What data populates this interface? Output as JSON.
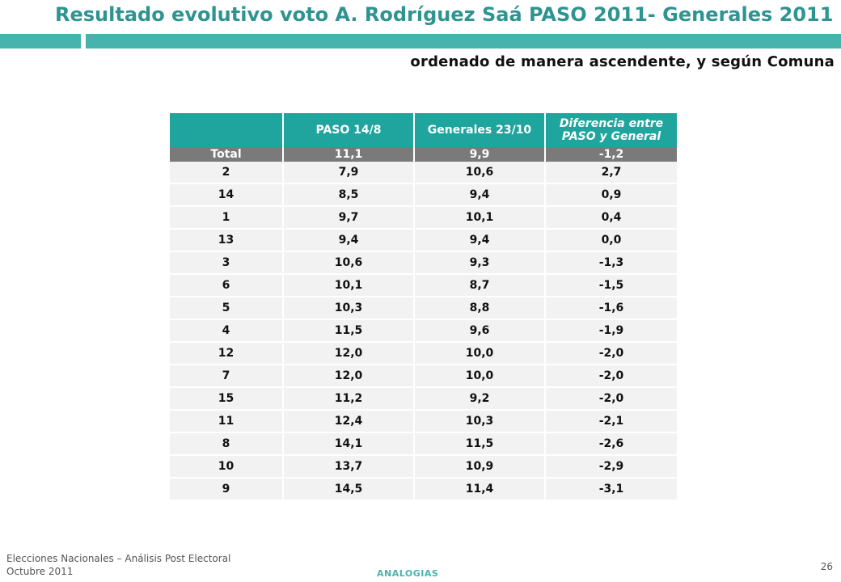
{
  "title": "Resultado evolutivo voto A. Rodríguez Saá PASO 2011- Generales 2011",
  "subtitle": "ordenado de manera ascendente, y según Comuna",
  "table": {
    "headers": [
      "",
      "PASO 14/8",
      "Generales 23/10",
      "Diferencia entre PASO y General"
    ],
    "total": {
      "label": "Total",
      "paso": "11,1",
      "generales": "9,9",
      "diferencia": "-1,2"
    },
    "rows": [
      {
        "comuna": "2",
        "paso": "7,9",
        "generales": "10,6",
        "diferencia": "2,7"
      },
      {
        "comuna": "14",
        "paso": "8,5",
        "generales": "9,4",
        "diferencia": "0,9"
      },
      {
        "comuna": "1",
        "paso": "9,7",
        "generales": "10,1",
        "diferencia": "0,4"
      },
      {
        "comuna": "13",
        "paso": "9,4",
        "generales": "9,4",
        "diferencia": "0,0"
      },
      {
        "comuna": "3",
        "paso": "10,6",
        "generales": "9,3",
        "diferencia": "-1,3"
      },
      {
        "comuna": "6",
        "paso": "10,1",
        "generales": "8,7",
        "diferencia": "-1,5"
      },
      {
        "comuna": "5",
        "paso": "10,3",
        "generales": "8,8",
        "diferencia": "-1,6"
      },
      {
        "comuna": "4",
        "paso": "11,5",
        "generales": "9,6",
        "diferencia": "-1,9"
      },
      {
        "comuna": "12",
        "paso": "12,0",
        "generales": "10,0",
        "diferencia": "-2,0"
      },
      {
        "comuna": "7",
        "paso": "12,0",
        "generales": "10,0",
        "diferencia": "-2,0"
      },
      {
        "comuna": "15",
        "paso": "11,2",
        "generales": "9,2",
        "diferencia": "-2,0"
      },
      {
        "comuna": "11",
        "paso": "12,4",
        "generales": "10,3",
        "diferencia": "-2,1"
      },
      {
        "comuna": "8",
        "paso": "14,1",
        "generales": "11,5",
        "diferencia": "-2,6"
      },
      {
        "comuna": "10",
        "paso": "13,7",
        "generales": "10,9",
        "diferencia": "-2,9"
      },
      {
        "comuna": "9",
        "paso": "14,5",
        "generales": "11,4",
        "diferencia": "-3,1"
      }
    ]
  },
  "footer": {
    "line1": "Elecciones Nacionales – Análisis Post Electoral",
    "line2": "Octubre 2011",
    "brand": "ANALOGIAS",
    "page": "26"
  },
  "colors": {
    "accent": "#46b3ad",
    "title": "#2e9490",
    "header_bg": "#1fa49e",
    "total_bg": "#7a7a7a",
    "row_bg": "#f2f2f2"
  }
}
